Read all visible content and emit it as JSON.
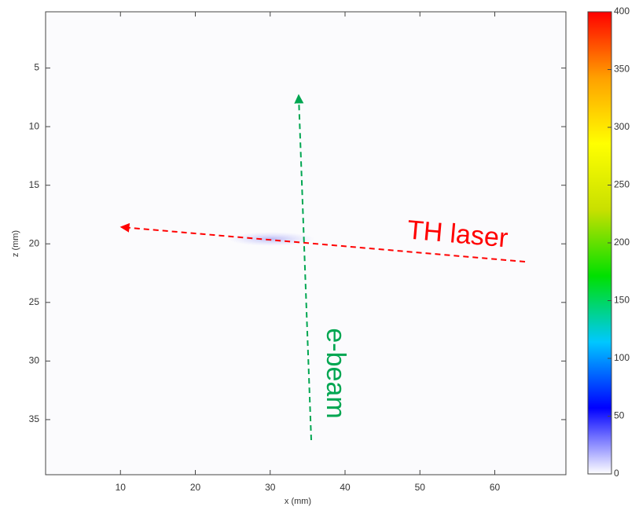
{
  "chart_data": {
    "type": "heatmap",
    "xlabel": "x (mm)",
    "ylabel": "z (mm)",
    "xlim": [
      0,
      69.5
    ],
    "xticks": [
      10,
      20,
      30,
      40,
      50,
      60
    ],
    "ylim": [
      39.7,
      0.2
    ],
    "yticks": [
      5,
      10,
      15,
      20,
      25,
      30,
      35
    ],
    "clim": [
      0,
      400
    ],
    "cticks": [
      0,
      50,
      100,
      150,
      200,
      250,
      300,
      350,
      400
    ],
    "colormap": [
      "#ffffff",
      "#0000ff",
      "#00c8ff",
      "#00e000",
      "#c8e000",
      "#ffff00",
      "#ffa000",
      "#ff0000"
    ],
    "annotations": [
      "TH laser",
      "e-beam"
    ]
  }
}
